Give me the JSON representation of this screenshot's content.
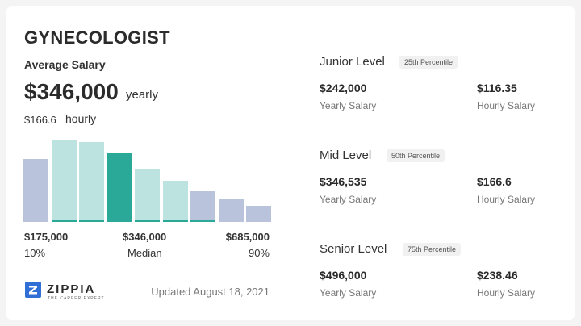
{
  "title": "GYNECOLOGIST",
  "average": {
    "label": "Average Salary",
    "value": "$346,000",
    "unit": "yearly",
    "hourly_value": "$166.6",
    "hourly_unit": "hourly"
  },
  "chart_data": {
    "type": "bar",
    "values": [
      76,
      99,
      97,
      83,
      65,
      50,
      37,
      28,
      20
    ],
    "ylim": [
      0,
      100
    ],
    "colors": [
      "#b9c3db",
      "#bde3e0",
      "#bde3e0",
      "#2aa898",
      "#bde3e0",
      "#bde3e0",
      "#b9c3db",
      "#b9c3db",
      "#b9c3db"
    ],
    "marker_color": "#2aa898",
    "marked": [
      1,
      2,
      4,
      5,
      6
    ],
    "axis": {
      "low_value": "$175,000",
      "low_pct": "10%",
      "mid_value": "$346,000",
      "mid_pct": "Median",
      "high_value": "$685,000",
      "high_pct": "90%"
    }
  },
  "footer": {
    "logo_text": "ZIPPIA",
    "logo_tagline": "THE CAREER EXPERT",
    "updated": "Updated August 18, 2021"
  },
  "levels": [
    {
      "title": "Junior Level",
      "percentile": "25th Percentile",
      "yearly_value": "$242,000",
      "yearly_caption": "Yearly Salary",
      "hourly_value": "$116.35",
      "hourly_caption": "Hourly Salary"
    },
    {
      "title": "Mid Level",
      "percentile": "50th Percentile",
      "yearly_value": "$346,535",
      "yearly_caption": "Yearly Salary",
      "hourly_value": "$166.6",
      "hourly_caption": "Hourly Salary"
    },
    {
      "title": "Senior Level",
      "percentile": "75th Percentile",
      "yearly_value": "$496,000",
      "yearly_caption": "Yearly Salary",
      "hourly_value": "$238.46",
      "hourly_caption": "Hourly Salary"
    }
  ],
  "colors": {
    "accent": "#2aa898",
    "logo_blue": "#2f6fd6"
  },
  "icons": {
    "logo": "zippia-logo-icon"
  }
}
